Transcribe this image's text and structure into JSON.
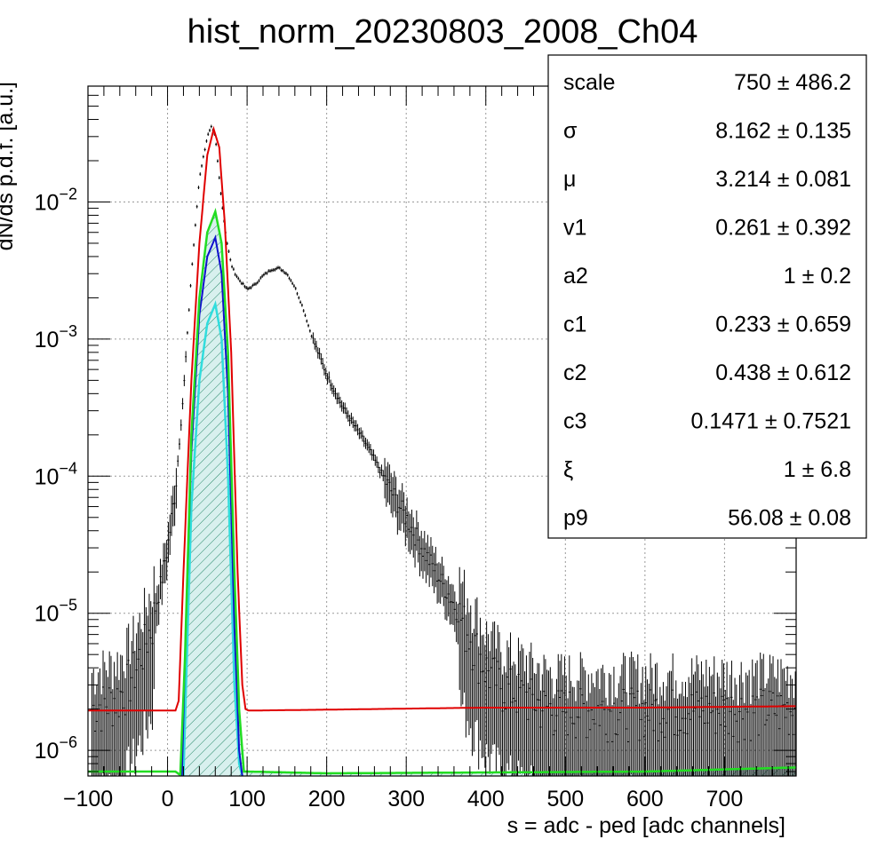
{
  "chart_data": {
    "type": "histogram",
    "title": "hist_norm_20230803_2008_Ch04",
    "xlabel": "s = adc - ped [adc channels]",
    "ylabel": "dN/ds p.d.f. [a.u.]",
    "xlim": [
      -100,
      790
    ],
    "ylim": [
      6.5e-07,
      0.07
    ],
    "y_scale": "log",
    "grid": true,
    "x_ticks": [
      {
        "v": -100,
        "t": "−100"
      },
      {
        "v": 0,
        "t": "0"
      },
      {
        "v": 100,
        "t": "100"
      },
      {
        "v": 200,
        "t": "200"
      },
      {
        "v": 300,
        "t": "300"
      },
      {
        "v": 400,
        "t": "400"
      },
      {
        "v": 500,
        "t": "500"
      },
      {
        "v": 600,
        "t": "600"
      },
      {
        "v": 700,
        "t": "700"
      }
    ],
    "y_ticks": [
      {
        "v": 1e-06,
        "base": "10",
        "exp": "−6"
      },
      {
        "v": 1e-05,
        "base": "10",
        "exp": "−5"
      },
      {
        "v": 0.0001,
        "base": "10",
        "exp": "−4"
      },
      {
        "v": 0.001,
        "base": "10",
        "exp": "−3"
      },
      {
        "v": 0.01,
        "base": "10",
        "exp": "−2"
      }
    ],
    "colors": {
      "data": "#000000",
      "total_fit": "#e00000",
      "green": "#22dd22",
      "blue": "#1010cc",
      "cyan": "#30dddd",
      "hatch": "#2a8a6a",
      "fill": "#d8f0ee"
    },
    "series": [
      {
        "kind": "data",
        "x": [
          -95,
          -60,
          -40,
          -20,
          -10,
          0,
          10,
          20,
          30,
          40,
          50,
          55,
          60,
          65,
          70,
          75,
          80,
          85,
          90,
          95,
          100,
          110,
          120,
          130,
          140,
          150,
          160,
          170,
          180,
          200,
          220,
          250,
          280,
          300,
          320,
          350,
          380,
          400,
          420,
          450,
          480,
          500,
          550,
          600,
          700,
          790
        ],
        "y": [
          2e-06,
          2.5e-06,
          4e-06,
          8e-06,
          1.5e-05,
          3e-05,
          8e-05,
          0.0004,
          0.003,
          0.015,
          0.03,
          0.035,
          0.03,
          0.015,
          0.008,
          0.005,
          0.0035,
          0.003,
          0.0027,
          0.0025,
          0.0023,
          0.0025,
          0.0029,
          0.0032,
          0.0033,
          0.003,
          0.0024,
          0.0017,
          0.0011,
          0.00055,
          0.00032,
          0.00017,
          8e-05,
          5e-05,
          3e-05,
          1.5e-05,
          7e-06,
          4e-06,
          3e-06,
          2.5e-06,
          2e-06,
          2e-06,
          2e-06,
          2e-06,
          2e-06,
          2e-06
        ]
      },
      {
        "kind": "fit_total",
        "x": [
          -100,
          10,
          14,
          20,
          30,
          40,
          50,
          58,
          65,
          72,
          80,
          88,
          94,
          98,
          102,
          200,
          400,
          600,
          790
        ],
        "y": [
          1.95e-06,
          1.95e-06,
          2.3e-06,
          2e-05,
          0.0005,
          0.005,
          0.022,
          0.034,
          0.025,
          0.007,
          0.0008,
          2e-05,
          3e-06,
          2e-06,
          1.95e-06,
          1.98e-06,
          2.05e-06,
          2.05e-06,
          2.1e-06
        ]
      },
      {
        "kind": "component_green",
        "x": [
          -100,
          10,
          16,
          22,
          30,
          40,
          50,
          60,
          68,
          76,
          84,
          90,
          96,
          102,
          200,
          400,
          600,
          790
        ],
        "y": [
          7e-07,
          7e-07,
          6.6e-07,
          5e-06,
          0.0002,
          0.002,
          0.006,
          0.0085,
          0.005,
          0.0008,
          2e-05,
          2e-06,
          7e-07,
          7e-07,
          6.8e-07,
          6.9e-07,
          7e-07,
          7.5e-07
        ]
      },
      {
        "kind": "component_blue",
        "x": [
          18,
          22,
          30,
          40,
          50,
          60,
          68,
          76,
          84,
          90,
          94
        ],
        "y": [
          6.5e-07,
          5e-06,
          0.00015,
          0.0015,
          0.004,
          0.0055,
          0.003,
          0.0004,
          8e-06,
          1e-06,
          6.5e-07
        ]
      },
      {
        "kind": "component_cyan",
        "x": [
          20,
          24,
          30,
          40,
          50,
          60,
          68,
          76,
          84,
          90,
          94
        ],
        "y": [
          6.5e-07,
          4e-06,
          6e-05,
          0.0005,
          0.0013,
          0.0018,
          0.001,
          0.0001,
          3e-06,
          8e-07,
          6.5e-07
        ]
      }
    ]
  },
  "stats": [
    {
      "name": "scale",
      "value": "750 ± 486.2"
    },
    {
      "name": "σ",
      "value": "8.162 ± 0.135"
    },
    {
      "name": "μ",
      "value": "3.214 ± 0.081"
    },
    {
      "name": "v1",
      "value": "0.261 ± 0.392"
    },
    {
      "name": "a2",
      "value": "1 ± 0.2"
    },
    {
      "name": "c1",
      "value": "0.233 ± 0.659"
    },
    {
      "name": "c2",
      "value": "0.438 ± 0.612"
    },
    {
      "name": "c3",
      "value": "0.1471 ± 0.7521"
    },
    {
      "name": "ξ",
      "value": "1 ± 6.8"
    },
    {
      "name": "p9",
      "value": "56.08 ± 0.08"
    }
  ]
}
